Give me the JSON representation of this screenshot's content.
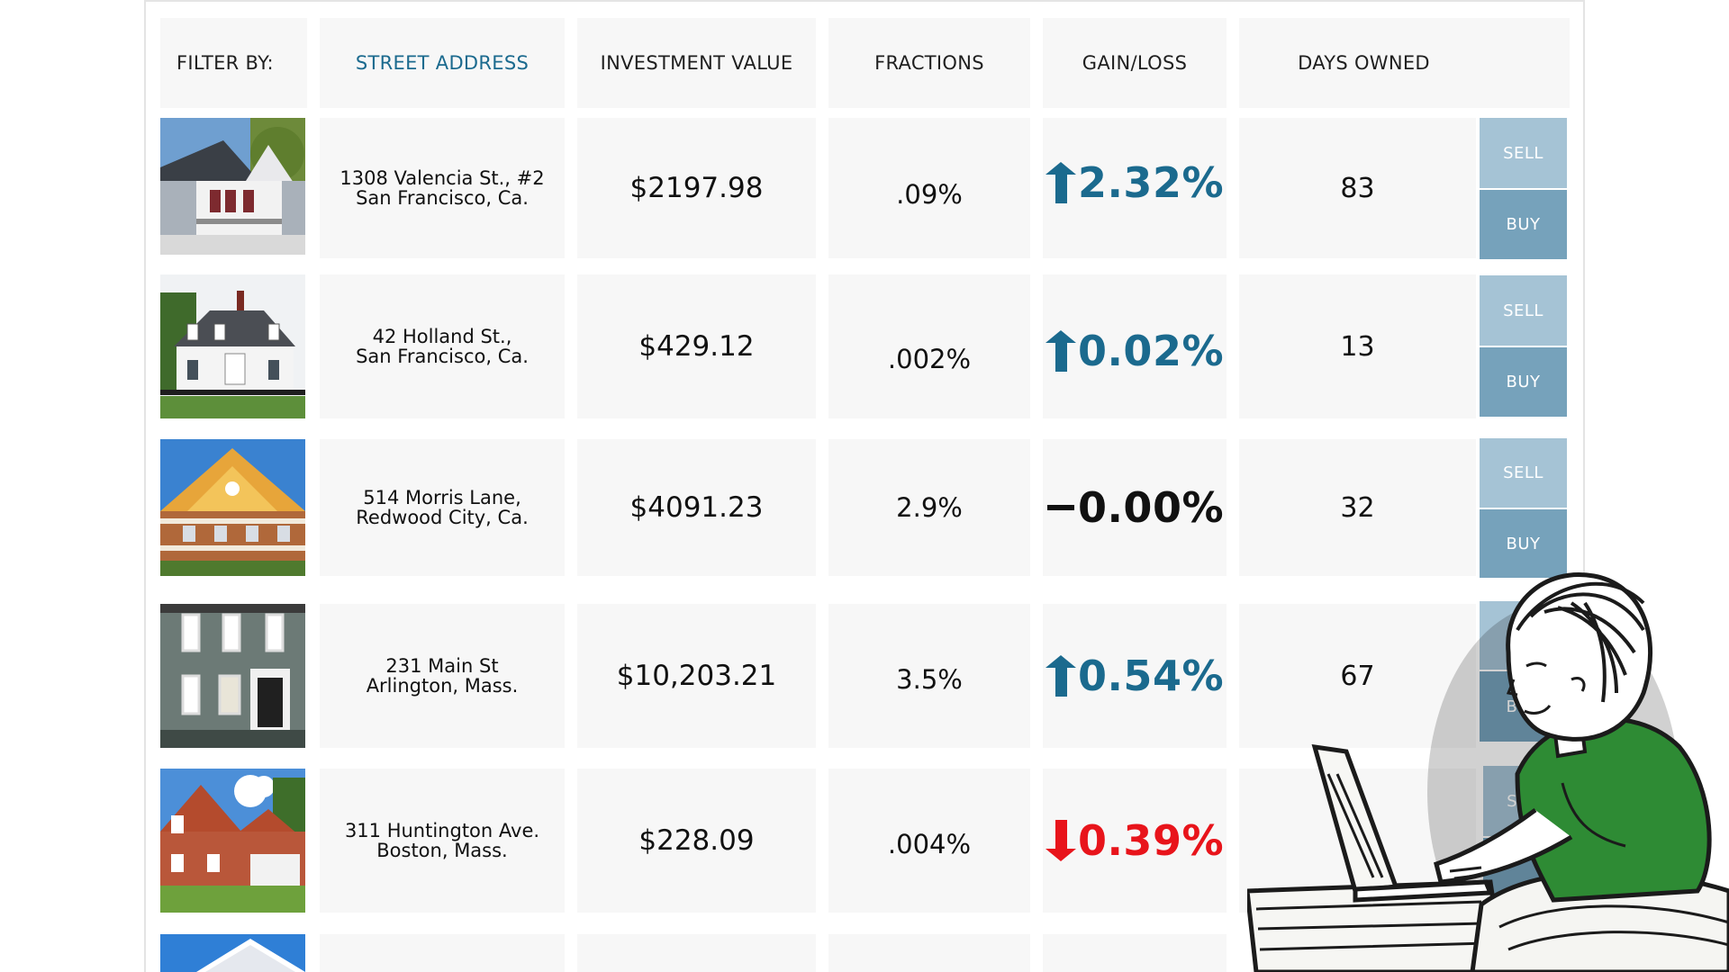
{
  "table": {
    "filter_label": "FILTER BY:",
    "columns": {
      "street_address": "STREET ADDRESS",
      "investment_value": "INVESTMENT VALUE",
      "fractions": "FRACTIONS",
      "gain_loss": "GAIN/LOSS",
      "days_owned": "DAYS OWNED"
    },
    "rows": [
      {
        "address_line1": "1308 Valencia St., #2",
        "address_line2": "San Francisco, Ca.",
        "value": "$2197.98",
        "fraction": ".09%",
        "gain": "2.32%",
        "trend": "up",
        "days": "83",
        "sell": "SELL",
        "buy": "BUY"
      },
      {
        "address_line1": "42 Holland St.,",
        "address_line2": "San Francisco, Ca.",
        "value": "$429.12",
        "fraction": ".002%",
        "gain": "0.02%",
        "trend": "up",
        "days": "13",
        "sell": "SELL",
        "buy": "BUY"
      },
      {
        "address_line1": "514 Morris Lane,",
        "address_line2": "Redwood City, Ca.",
        "value": "$4091.23",
        "fraction": "2.9%",
        "gain": "0.00%",
        "trend": "flat",
        "days": "32",
        "sell": "SELL",
        "buy": "BUY"
      },
      {
        "address_line1": "231 Main St",
        "address_line2": "Arlington, Mass.",
        "value": "$10,203.21",
        "fraction": "3.5%",
        "gain": "0.54%",
        "trend": "up",
        "days": "67",
        "sell": "SEL",
        "buy": "BUY"
      },
      {
        "address_line1": "311 Huntington Ave.",
        "address_line2": "Boston, Mass.",
        "value": "$228.09",
        "fraction": ".004%",
        "gain": "0.39%",
        "trend": "down",
        "days": "",
        "sell": "SELL",
        "buy": ""
      }
    ]
  },
  "icons": {
    "up": "arrow-up-icon",
    "down": "arrow-down-icon",
    "flat": "dash-icon"
  },
  "colors": {
    "accent": "#1b6a8e",
    "gain_up": "#1b6a8e",
    "gain_down": "#e8141b",
    "gain_flat": "#111111",
    "sell_button": "#a5c3d5",
    "buy_button": "#76a2bb",
    "cell_bg": "#f7f7f7"
  }
}
